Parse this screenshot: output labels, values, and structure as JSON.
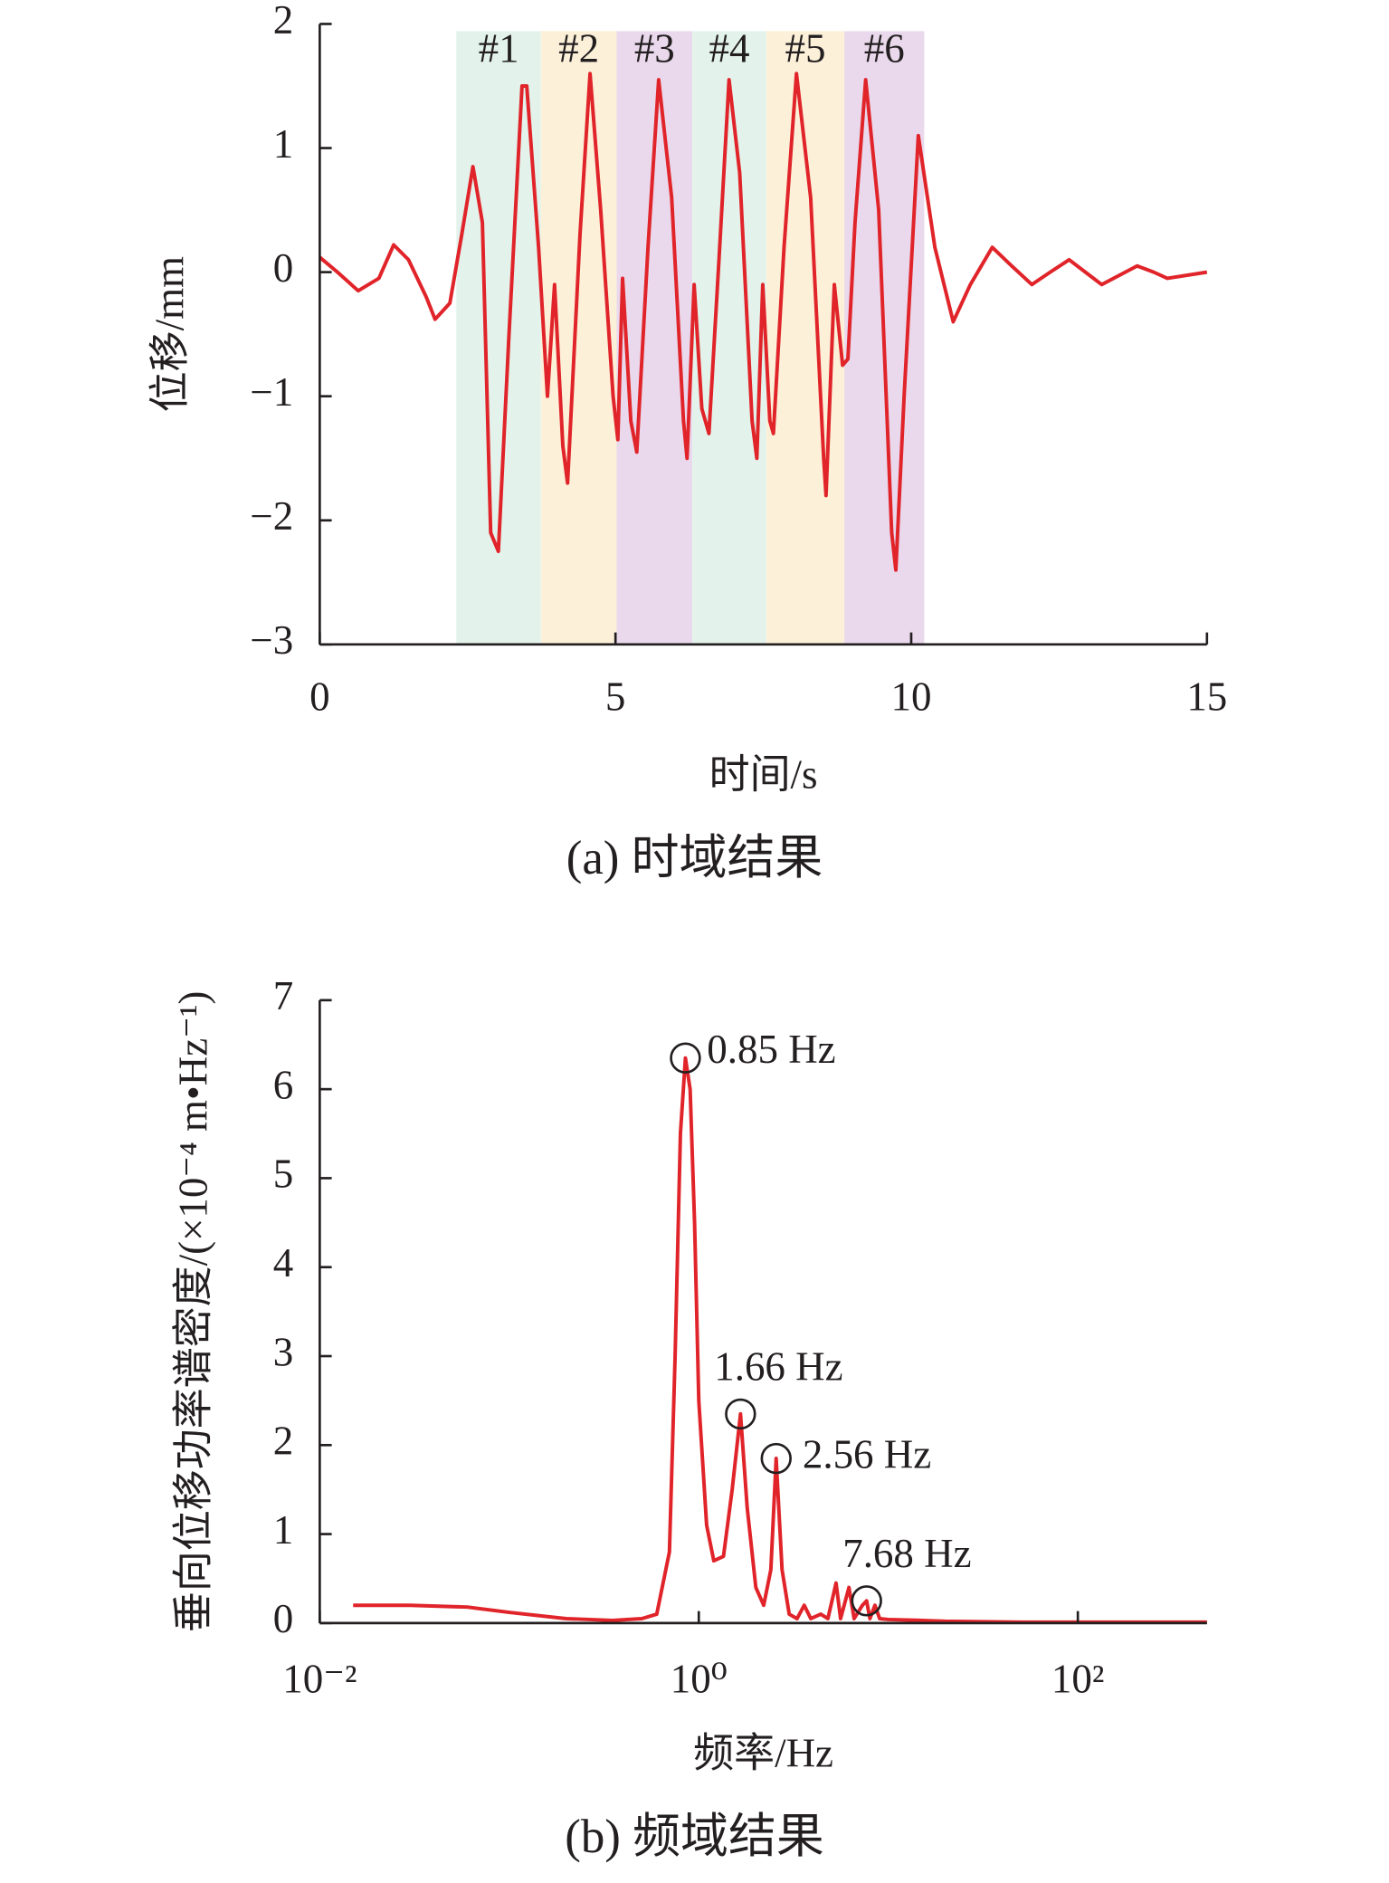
{
  "chart_data": [
    {
      "type": "line",
      "caption": "(a) 时域结果",
      "xlabel": "时间/s",
      "ylabel": "位移/mm",
      "xlim": [
        0,
        15
      ],
      "xticks": [
        0,
        5,
        10,
        15
      ],
      "ylim": [
        -3,
        2
      ],
      "yticks": [
        {
          "value": -3,
          "label": "−3"
        },
        {
          "value": -2,
          "label": "−2"
        },
        {
          "value": -1,
          "label": "−1"
        },
        0,
        1,
        2
      ],
      "regions": [
        {
          "label": "#1",
          "start": 2.31,
          "end": 3.74,
          "color": "#e3f3ec"
        },
        {
          "label": "#2",
          "start": 3.74,
          "end": 5.02,
          "color": "#fcf0d9"
        },
        {
          "label": "#3",
          "start": 5.02,
          "end": 6.3,
          "color": "#ead9ec"
        },
        {
          "label": "#4",
          "start": 6.3,
          "end": 7.55,
          "color": "#e3f3ec"
        },
        {
          "label": "#5",
          "start": 7.55,
          "end": 8.87,
          "color": "#fcf0d9"
        },
        {
          "label": "#6",
          "start": 8.87,
          "end": 10.22,
          "color": "#ead9ec"
        }
      ],
      "x": [
        0,
        0.3,
        0.65,
        1.0,
        1.25,
        1.5,
        1.8,
        1.95,
        2.2,
        2.4,
        2.59,
        2.75,
        2.89,
        3.02,
        3.2,
        3.42,
        3.5,
        3.7,
        3.85,
        3.97,
        4.11,
        4.19,
        4.4,
        4.57,
        4.75,
        4.96,
        5.04,
        5.12,
        5.26,
        5.36,
        5.55,
        5.73,
        5.95,
        6.15,
        6.21,
        6.33,
        6.46,
        6.58,
        6.75,
        6.92,
        7.1,
        7.31,
        7.39,
        7.49,
        7.61,
        7.67,
        7.85,
        8.06,
        8.3,
        8.52,
        8.56,
        8.7,
        8.84,
        8.93,
        9.05,
        9.23,
        9.45,
        9.67,
        9.74,
        9.88,
        10.12,
        10.4,
        10.71,
        11.0,
        11.37,
        11.7,
        12.04,
        12.35,
        12.67,
        13.0,
        13.22,
        13.5,
        13.82,
        14.1,
        14.33,
        15
      ],
      "series": [
        {
          "color": "#e0242a",
          "values": [
            0.12,
            0.0,
            -0.15,
            -0.05,
            0.22,
            0.1,
            -0.2,
            -0.38,
            -0.25,
            0.3,
            0.85,
            0.4,
            -2.1,
            -2.25,
            -0.5,
            1.5,
            1.5,
            0.2,
            -1.0,
            -0.1,
            -1.4,
            -1.7,
            0.3,
            1.6,
            0.5,
            -1.0,
            -1.35,
            -0.05,
            -1.2,
            -1.45,
            0.2,
            1.55,
            0.6,
            -1.2,
            -1.5,
            -0.1,
            -1.1,
            -1.3,
            0.1,
            1.55,
            0.8,
            -1.2,
            -1.5,
            -0.1,
            -1.2,
            -1.3,
            0.2,
            1.6,
            0.6,
            -1.5,
            -1.8,
            -0.1,
            -0.75,
            -0.7,
            0.4,
            1.55,
            0.5,
            -2.1,
            -2.4,
            -1.0,
            1.1,
            0.2,
            -0.4,
            -0.1,
            0.2,
            0.05,
            -0.1,
            0.0,
            0.1,
            -0.02,
            -0.1,
            -0.03,
            0.05,
            0.0,
            -0.05,
            0.0
          ]
        }
      ]
    },
    {
      "type": "line",
      "caption": "(b) 频域结果",
      "xlabel": "频率/Hz",
      "ylabel": "垂向位移功率谱密度/(×10⁻⁴ m•Hz⁻¹)",
      "xscale": "log",
      "xlim": [
        0.01,
        480
      ],
      "xticks": [
        {
          "value": 0.01,
          "label": "10⁻²"
        },
        {
          "value": 1,
          "label": "10⁰"
        },
        {
          "value": 100,
          "label": "10²"
        }
      ],
      "ylim": [
        0,
        7
      ],
      "yticks": [
        0,
        1,
        2,
        3,
        4,
        5,
        6,
        7
      ],
      "annotations": [
        {
          "text": "0.85 Hz",
          "x": 0.85,
          "y": 6.35
        },
        {
          "text": "1.66 Hz",
          "x": 1.66,
          "y": 2.35
        },
        {
          "text": "2.56 Hz",
          "x": 2.56,
          "y": 1.85
        },
        {
          "text": "7.68 Hz",
          "x": 7.68,
          "y": 0.25
        }
      ],
      "x": [
        0.015,
        0.03,
        0.06,
        0.1,
        0.2,
        0.35,
        0.5,
        0.6,
        0.7,
        0.75,
        0.8,
        0.85,
        0.9,
        0.95,
        1.0,
        1.1,
        1.2,
        1.35,
        1.5,
        1.66,
        1.8,
        2.0,
        2.2,
        2.4,
        2.56,
        2.75,
        3.0,
        3.3,
        3.6,
        3.9,
        4.4,
        4.8,
        5.3,
        5.6,
        6.2,
        6.6,
        7.3,
        7.68,
        8.0,
        8.5,
        9,
        10,
        15,
        20,
        50,
        100,
        200,
        480
      ],
      "series": [
        {
          "color": "#e0242a",
          "values": [
            0.2,
            0.2,
            0.18,
            0.12,
            0.05,
            0.03,
            0.05,
            0.1,
            0.8,
            3,
            5.5,
            6.35,
            6.0,
            4.5,
            2.5,
            1.1,
            0.7,
            0.75,
            1.5,
            2.35,
            1.3,
            0.4,
            0.2,
            0.6,
            1.85,
            0.6,
            0.1,
            0.05,
            0.2,
            0.05,
            0.1,
            0.05,
            0.45,
            0.05,
            0.4,
            0.05,
            0.2,
            0.25,
            0.05,
            0.2,
            0.05,
            0.04,
            0.03,
            0.02,
            0.01,
            0.01,
            0.01,
            0.01
          ]
        }
      ]
    }
  ]
}
